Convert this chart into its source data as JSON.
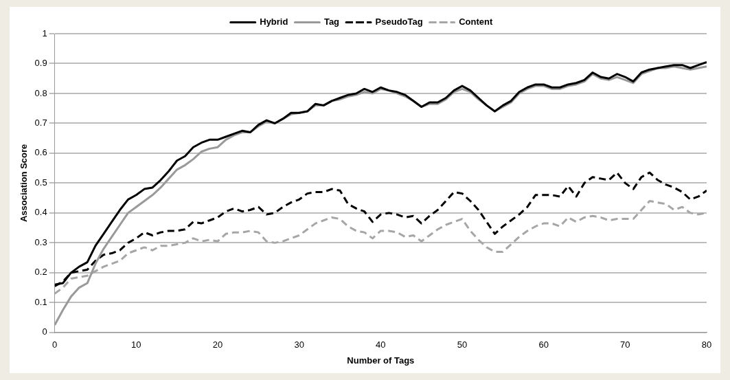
{
  "chart_data": {
    "type": "line",
    "xlabel": "Number of Tags",
    "ylabel": "Association Score",
    "x": [
      0,
      1,
      2,
      3,
      4,
      5,
      6,
      7,
      8,
      9,
      10,
      11,
      12,
      13,
      14,
      15,
      16,
      17,
      18,
      19,
      20,
      21,
      22,
      23,
      24,
      25,
      26,
      27,
      28,
      29,
      30,
      31,
      32,
      33,
      34,
      35,
      36,
      37,
      38,
      39,
      40,
      41,
      42,
      43,
      44,
      45,
      46,
      47,
      48,
      49,
      50,
      51,
      52,
      53,
      54,
      55,
      56,
      57,
      58,
      59,
      60,
      61,
      62,
      63,
      64,
      65,
      66,
      67,
      68,
      69,
      70,
      71,
      72,
      73,
      74,
      75,
      76,
      77,
      78,
      79,
      80
    ],
    "series": [
      {
        "name": "Hybrid",
        "color": "#000000",
        "line_style": "solid",
        "values": [
          0.16,
          0.165,
          0.2,
          0.22,
          0.235,
          0.29,
          0.33,
          0.37,
          0.41,
          0.445,
          0.46,
          0.48,
          0.485,
          0.51,
          0.54,
          0.575,
          0.59,
          0.62,
          0.635,
          0.645,
          0.645,
          0.655,
          0.665,
          0.675,
          0.67,
          0.695,
          0.71,
          0.7,
          0.715,
          0.735,
          0.735,
          0.74,
          0.765,
          0.76,
          0.775,
          0.785,
          0.795,
          0.8,
          0.815,
          0.805,
          0.82,
          0.81,
          0.805,
          0.795,
          0.775,
          0.755,
          0.77,
          0.77,
          0.785,
          0.81,
          0.825,
          0.81,
          0.785,
          0.76,
          0.74,
          0.76,
          0.775,
          0.805,
          0.82,
          0.83,
          0.83,
          0.82,
          0.82,
          0.83,
          0.835,
          0.845,
          0.87,
          0.855,
          0.85,
          0.865,
          0.855,
          0.84,
          0.87,
          0.88,
          0.885,
          0.89,
          0.895,
          0.895,
          0.885,
          0.895,
          0.905
        ]
      },
      {
        "name": "Tag",
        "color": "#999999",
        "line_style": "solid",
        "values": [
          0.025,
          0.075,
          0.12,
          0.15,
          0.165,
          0.23,
          0.28,
          0.32,
          0.36,
          0.4,
          0.42,
          0.44,
          0.46,
          0.485,
          0.515,
          0.545,
          0.56,
          0.58,
          0.605,
          0.615,
          0.62,
          0.645,
          0.66,
          0.67,
          0.67,
          0.69,
          0.705,
          0.7,
          0.715,
          0.73,
          0.735,
          0.74,
          0.76,
          0.76,
          0.775,
          0.78,
          0.79,
          0.795,
          0.805,
          0.8,
          0.815,
          0.81,
          0.8,
          0.79,
          0.775,
          0.755,
          0.765,
          0.765,
          0.78,
          0.805,
          0.815,
          0.805,
          0.78,
          0.76,
          0.74,
          0.755,
          0.77,
          0.8,
          0.815,
          0.825,
          0.825,
          0.815,
          0.815,
          0.825,
          0.83,
          0.84,
          0.865,
          0.85,
          0.845,
          0.855,
          0.845,
          0.835,
          0.865,
          0.875,
          0.885,
          0.885,
          0.89,
          0.885,
          0.88,
          0.885,
          0.89
        ]
      },
      {
        "name": "PseudoTag",
        "color": "#000000",
        "line_style": "dashed",
        "values": [
          0.155,
          0.17,
          0.2,
          0.205,
          0.21,
          0.24,
          0.26,
          0.265,
          0.275,
          0.3,
          0.315,
          0.335,
          0.325,
          0.335,
          0.34,
          0.34,
          0.345,
          0.37,
          0.365,
          0.375,
          0.385,
          0.405,
          0.415,
          0.405,
          0.41,
          0.42,
          0.395,
          0.4,
          0.42,
          0.435,
          0.445,
          0.465,
          0.47,
          0.47,
          0.48,
          0.475,
          0.43,
          0.415,
          0.405,
          0.37,
          0.395,
          0.4,
          0.395,
          0.385,
          0.39,
          0.365,
          0.39,
          0.41,
          0.44,
          0.47,
          0.465,
          0.44,
          0.41,
          0.37,
          0.33,
          0.355,
          0.375,
          0.395,
          0.42,
          0.46,
          0.46,
          0.46,
          0.455,
          0.49,
          0.455,
          0.5,
          0.52,
          0.515,
          0.51,
          0.535,
          0.5,
          0.48,
          0.52,
          0.535,
          0.51,
          0.495,
          0.485,
          0.47,
          0.445,
          0.455,
          0.475
        ]
      },
      {
        "name": "Content",
        "color": "#a6a6a6",
        "line_style": "dashed",
        "values": [
          0.13,
          0.15,
          0.18,
          0.185,
          0.19,
          0.205,
          0.22,
          0.23,
          0.24,
          0.265,
          0.275,
          0.285,
          0.275,
          0.29,
          0.29,
          0.295,
          0.3,
          0.315,
          0.305,
          0.31,
          0.305,
          0.33,
          0.335,
          0.335,
          0.34,
          0.335,
          0.305,
          0.3,
          0.305,
          0.315,
          0.325,
          0.345,
          0.365,
          0.375,
          0.385,
          0.38,
          0.355,
          0.34,
          0.335,
          0.315,
          0.34,
          0.34,
          0.335,
          0.32,
          0.325,
          0.305,
          0.325,
          0.345,
          0.36,
          0.37,
          0.38,
          0.34,
          0.31,
          0.285,
          0.27,
          0.27,
          0.295,
          0.32,
          0.34,
          0.355,
          0.365,
          0.365,
          0.355,
          0.385,
          0.37,
          0.385,
          0.39,
          0.385,
          0.375,
          0.38,
          0.38,
          0.38,
          0.41,
          0.44,
          0.435,
          0.43,
          0.41,
          0.42,
          0.4,
          0.395,
          0.4
        ]
      }
    ],
    "xlim": [
      0,
      80
    ],
    "xticks": [
      0,
      10,
      20,
      30,
      40,
      50,
      60,
      70,
      80
    ],
    "ylim": [
      0,
      1
    ],
    "yticks": [
      0,
      0.1,
      0.2,
      0.3,
      0.4,
      0.5,
      0.6,
      0.7,
      0.8,
      0.9,
      1
    ],
    "grid": "y",
    "legend": "top",
    "marker": "none"
  }
}
